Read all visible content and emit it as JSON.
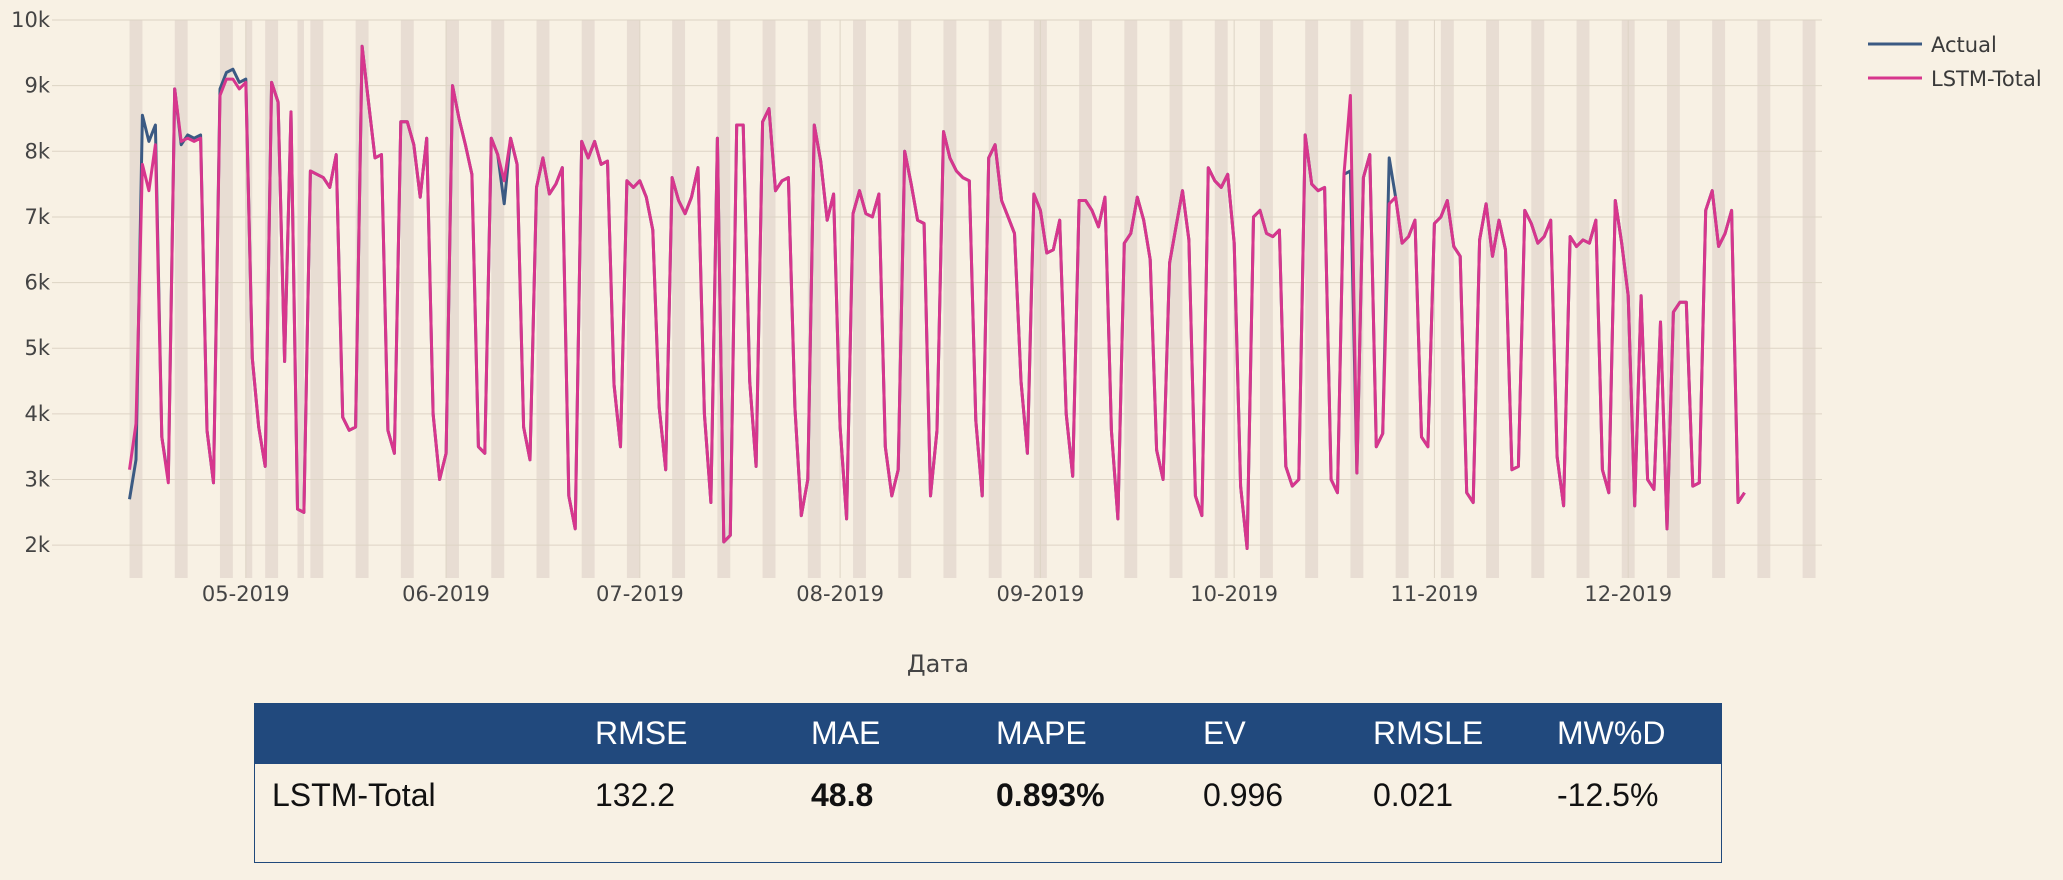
{
  "chart_data": {
    "type": "line",
    "xlabel": "Дата",
    "ylabel": "",
    "x_range": [
      "2019-04-01",
      "2019-12-31"
    ],
    "ylim": [
      1500,
      10000
    ],
    "y_ticks": [
      {
        "value": 2000,
        "label": "2k"
      },
      {
        "value": 3000,
        "label": "3k"
      },
      {
        "value": 4000,
        "label": "4k"
      },
      {
        "value": 5000,
        "label": "5k"
      },
      {
        "value": 6000,
        "label": "6k"
      },
      {
        "value": 7000,
        "label": "7k"
      },
      {
        "value": 8000,
        "label": "8k"
      },
      {
        "value": 9000,
        "label": "9k"
      },
      {
        "value": 10000,
        "label": "10k"
      }
    ],
    "x_ticks": [
      {
        "value": "2019-05-01",
        "label": "05-2019"
      },
      {
        "value": "2019-06-01",
        "label": "06-2019"
      },
      {
        "value": "2019-07-01",
        "label": "07-2019"
      },
      {
        "value": "2019-08-01",
        "label": "08-2019"
      },
      {
        "value": "2019-09-01",
        "label": "09-2019"
      },
      {
        "value": "2019-10-01",
        "label": "10-2019"
      },
      {
        "value": "2019-11-01",
        "label": "11-2019"
      },
      {
        "value": "2019-12-01",
        "label": "12-2019"
      }
    ],
    "grid": true,
    "legend_position": "top-right",
    "shaded_bands": [
      [
        "2019-04-13",
        "2019-04-14"
      ],
      [
        "2019-04-20",
        "2019-04-21"
      ],
      [
        "2019-04-27",
        "2019-04-28"
      ],
      [
        "2019-05-01",
        "2019-05-01"
      ],
      [
        "2019-05-04",
        "2019-05-05"
      ],
      [
        "2019-05-09",
        "2019-05-09"
      ],
      [
        "2019-05-11",
        "2019-05-12"
      ],
      [
        "2019-05-18",
        "2019-05-19"
      ],
      [
        "2019-05-25",
        "2019-05-26"
      ],
      [
        "2019-06-01",
        "2019-06-02"
      ],
      [
        "2019-06-08",
        "2019-06-09"
      ],
      [
        "2019-06-15",
        "2019-06-16"
      ],
      [
        "2019-06-22",
        "2019-06-23"
      ],
      [
        "2019-06-29",
        "2019-06-30"
      ],
      [
        "2019-07-06",
        "2019-07-07"
      ],
      [
        "2019-07-13",
        "2019-07-14"
      ],
      [
        "2019-07-20",
        "2019-07-21"
      ],
      [
        "2019-07-27",
        "2019-07-28"
      ],
      [
        "2019-08-03",
        "2019-08-04"
      ],
      [
        "2019-08-10",
        "2019-08-11"
      ],
      [
        "2019-08-17",
        "2019-08-18"
      ],
      [
        "2019-08-24",
        "2019-08-25"
      ],
      [
        "2019-08-31",
        "2019-09-01"
      ],
      [
        "2019-09-07",
        "2019-09-08"
      ],
      [
        "2019-09-14",
        "2019-09-15"
      ],
      [
        "2019-09-21",
        "2019-09-22"
      ],
      [
        "2019-09-28",
        "2019-09-29"
      ],
      [
        "2019-10-05",
        "2019-10-06"
      ],
      [
        "2019-10-12",
        "2019-10-13"
      ],
      [
        "2019-10-19",
        "2019-10-20"
      ],
      [
        "2019-10-26",
        "2019-10-27"
      ],
      [
        "2019-11-02",
        "2019-11-03"
      ],
      [
        "2019-11-09",
        "2019-11-10"
      ],
      [
        "2019-11-16",
        "2019-11-17"
      ],
      [
        "2019-11-23",
        "2019-11-24"
      ],
      [
        "2019-11-30",
        "2019-12-01"
      ],
      [
        "2019-12-07",
        "2019-12-08"
      ],
      [
        "2019-12-14",
        "2019-12-15"
      ],
      [
        "2019-12-21",
        "2019-12-22"
      ],
      [
        "2019-12-28",
        "2019-12-29"
      ]
    ],
    "series": [
      {
        "name": "Actual",
        "color": "#3b5a83",
        "x_start": "2019-04-13",
        "values": [
          2700,
          3300,
          8550,
          8150,
          8400,
          3650,
          3000,
          8950,
          8100,
          8250,
          8200,
          8250,
          3750,
          2950,
          8950,
          9200,
          9250,
          9050,
          9100,
          4850,
          3800,
          3200,
          9050,
          8750,
          4800,
          8600,
          2550,
          2500,
          7700,
          7650,
          7600,
          7450,
          7950,
          3950,
          3750,
          3800,
          9600,
          8750,
          7900,
          7950,
          3750,
          3400,
          8450,
          8450,
          8100,
          7300,
          8200,
          4000,
          3000,
          3400,
          9000,
          8500,
          8100,
          7650,
          3500,
          3400,
          8200,
          7950,
          7200,
          8200,
          7800,
          3800,
          3300,
          7450,
          7900,
          7350,
          7500,
          7750,
          2750,
          2250,
          8150,
          7900,
          8150,
          7800,
          7850,
          4450,
          3500,
          7550,
          7450,
          7550,
          7300,
          6800,
          4100,
          3150,
          7600,
          7250,
          7050,
          7300,
          7750,
          4000,
          2650,
          8200,
          2050,
          2150,
          8400,
          8400,
          4500,
          3200,
          8450,
          8650,
          7400,
          7550,
          7600,
          4100,
          2450,
          3000,
          8400,
          7850,
          6950,
          7350,
          3800,
          2400,
          7050,
          7400,
          7050,
          7000,
          7350,
          3500,
          2750,
          3150,
          8000,
          7500,
          6950,
          6900,
          2750,
          3750,
          8300,
          7900,
          7700,
          7600,
          7550,
          3900,
          2750,
          7900,
          8100,
          7250,
          7000,
          6750,
          4500,
          3400,
          7350,
          7100,
          6450,
          6500,
          6950,
          4000,
          3050,
          7250,
          7250,
          7100,
          6850,
          7300,
          3750,
          2400,
          6600,
          6750,
          7300,
          6950,
          6350,
          3450,
          3000,
          6300,
          6850,
          7400,
          6650,
          2750,
          2450,
          7750,
          7550,
          7450,
          7650,
          6600,
          2900,
          1950,
          7000,
          7100,
          6750,
          6700,
          6800,
          3200,
          2900,
          3000,
          8250,
          7500,
          7400,
          7450,
          3000,
          2800,
          7650,
          7700,
          3100,
          7600,
          7950,
          3500,
          3700,
          7900,
          7300,
          6600,
          6700,
          6950,
          3650,
          3500,
          6900,
          7000,
          7250,
          6550,
          6400,
          2800,
          2650,
          6650,
          7200,
          6400,
          6950,
          6500,
          3150,
          3200,
          7100,
          6900,
          6600,
          6700,
          6950,
          3350,
          2600,
          6700,
          6550,
          6650,
          6600,
          6950,
          3150,
          2800,
          7250,
          6600,
          5800,
          2600,
          5800,
          3000,
          2850,
          5400,
          2250,
          5550,
          5700,
          5700,
          2900,
          2950,
          7100,
          7400,
          6550,
          6750,
          7100,
          2650,
          2800
        ]
      },
      {
        "name": "LSTM-Total",
        "color": "#d7368d",
        "x_start": "2019-04-13",
        "values": [
          3150,
          3850,
          7800,
          7400,
          8100,
          3650,
          2950,
          8950,
          8150,
          8200,
          8150,
          8200,
          3750,
          2950,
          8850,
          9100,
          9100,
          8950,
          9050,
          4850,
          3800,
          3200,
          9050,
          8750,
          4800,
          8600,
          2550,
          2500,
          7700,
          7650,
          7600,
          7450,
          7950,
          3950,
          3750,
          3800,
          9600,
          8750,
          7900,
          7950,
          3750,
          3400,
          8450,
          8450,
          8100,
          7300,
          8200,
          4000,
          3000,
          3400,
          9000,
          8500,
          8100,
          7650,
          3500,
          3400,
          8200,
          7950,
          7550,
          8200,
          7800,
          3800,
          3300,
          7450,
          7900,
          7350,
          7500,
          7750,
          2750,
          2250,
          8150,
          7900,
          8150,
          7800,
          7850,
          4450,
          3500,
          7550,
          7450,
          7550,
          7300,
          6800,
          4100,
          3150,
          7600,
          7250,
          7050,
          7300,
          7750,
          4000,
          2650,
          8200,
          2050,
          2150,
          8400,
          8400,
          4500,
          3200,
          8450,
          8650,
          7400,
          7550,
          7600,
          4100,
          2450,
          3000,
          8400,
          7850,
          6950,
          7350,
          3800,
          2400,
          7050,
          7400,
          7050,
          7000,
          7350,
          3500,
          2750,
          3150,
          8000,
          7500,
          6950,
          6900,
          2750,
          3750,
          8300,
          7900,
          7700,
          7600,
          7550,
          3900,
          2750,
          7900,
          8100,
          7250,
          7000,
          6750,
          4500,
          3400,
          7350,
          7100,
          6450,
          6500,
          6950,
          4000,
          3050,
          7250,
          7250,
          7100,
          6850,
          7300,
          3750,
          2400,
          6600,
          6750,
          7300,
          6950,
          6350,
          3450,
          3000,
          6300,
          6850,
          7400,
          6650,
          2750,
          2450,
          7750,
          7550,
          7450,
          7650,
          6600,
          2900,
          1950,
          7000,
          7100,
          6750,
          6700,
          6800,
          3200,
          2900,
          3000,
          8250,
          7500,
          7400,
          7450,
          3000,
          2800,
          7650,
          8850,
          3100,
          7600,
          7950,
          3500,
          3700,
          7200,
          7300,
          6600,
          6700,
          6950,
          3650,
          3500,
          6900,
          7000,
          7250,
          6550,
          6400,
          2800,
          2650,
          6650,
          7200,
          6400,
          6950,
          6500,
          3150,
          3200,
          7100,
          6900,
          6600,
          6700,
          6950,
          3350,
          2600,
          6700,
          6550,
          6650,
          6600,
          6950,
          3150,
          2800,
          7250,
          6600,
          5800,
          2600,
          5800,
          3000,
          2850,
          5400,
          2250,
          5550,
          5700,
          5700,
          2900,
          2950,
          7100,
          7400,
          6550,
          6750,
          7100,
          2650,
          2800
        ]
      }
    ]
  },
  "metrics_table": {
    "headers": [
      "",
      "RMSE",
      "MAE",
      "MAPE",
      "EV",
      "RMSLE",
      "MW%D"
    ],
    "rows": [
      [
        "LSTM-Total",
        "132.2",
        "48.8",
        "0.893%",
        "0.996",
        "0.021",
        "-12.5%"
      ]
    ],
    "bold_columns": [
      2,
      3
    ]
  }
}
